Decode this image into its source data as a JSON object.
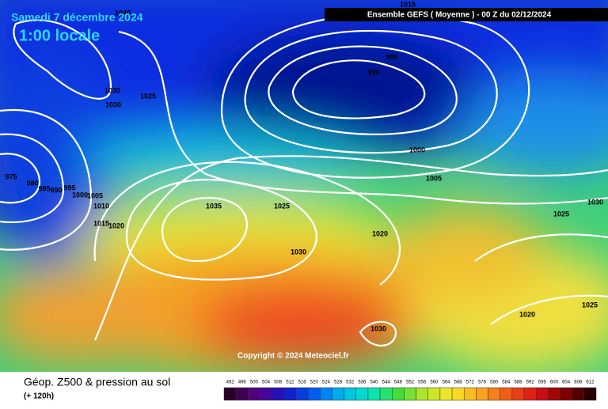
{
  "header": {
    "date": "Samedi 7 décembre 2024",
    "time": "1:00 locale",
    "banner": "Ensemble GEFS  ( Moyenne )  - 00 Z du 02/12/2024"
  },
  "isobar_labels": [
    1015,
    1040,
    995,
    990,
    1035,
    1030,
    1025,
    1000,
    1005,
    975,
    980,
    985,
    990,
    995,
    1000,
    1005,
    1010,
    1015,
    1020,
    1035,
    1025,
    1020,
    1030,
    1030,
    1025,
    1030,
    1025,
    1020
  ],
  "copyright": "Copyright © 2024 Meteociel.fr",
  "footer": {
    "title": "Géop. Z500 & pression au sol",
    "lead": "(+ 120h)"
  },
  "scale": [
    492,
    496,
    500,
    504,
    508,
    512,
    516,
    520,
    524,
    528,
    532,
    536,
    540,
    544,
    548,
    552,
    556,
    560,
    564,
    568,
    572,
    576,
    580,
    584,
    588,
    592,
    596,
    600,
    604,
    608,
    612
  ]
}
